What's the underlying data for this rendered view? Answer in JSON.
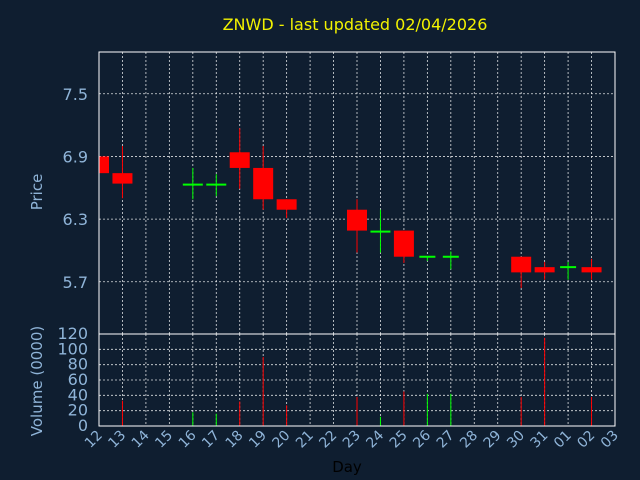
{
  "chart_data": {
    "type": "candlestick",
    "title": "ZNWD - last updated 02/04/2026",
    "xlabel": "Day",
    "ylabel": "Price",
    "volume_label": "Volume (0000)",
    "price_ylim": [
      5.2,
      7.9
    ],
    "price_ticks": [
      "5.7",
      "6.3",
      "6.9",
      "7.5"
    ],
    "volume_ylim": [
      0,
      120
    ],
    "volume_ticks": [
      "0",
      "20",
      "40",
      "60",
      "80",
      "100",
      "120"
    ],
    "x_ticks": [
      "12",
      "13",
      "14",
      "15",
      "16",
      "17",
      "18",
      "19",
      "20",
      "21",
      "22",
      "23",
      "24",
      "25",
      "26",
      "27",
      "28",
      "29",
      "30",
      "31",
      "01",
      "02",
      "03"
    ],
    "grid": true,
    "colors": {
      "down": "#ff0000",
      "up": "#00ff00",
      "background": "#0f1e30",
      "title": "#f2f200",
      "axis_text": "#8fb4d8"
    },
    "candles": [
      {
        "day": "12",
        "open": 6.9,
        "high": 6.92,
        "low": 6.74,
        "close": 6.74,
        "volume": 0
      },
      {
        "day": "13",
        "open": 6.74,
        "high": 7.0,
        "low": 6.5,
        "close": 6.64,
        "volume": 33
      },
      {
        "day": "16",
        "open": 6.63,
        "high": 6.79,
        "low": 6.49,
        "close": 6.64,
        "volume": 18
      },
      {
        "day": "17",
        "open": 6.63,
        "high": 6.73,
        "low": 6.52,
        "close": 6.64,
        "volume": 16
      },
      {
        "day": "18",
        "open": 6.94,
        "high": 7.17,
        "low": 6.59,
        "close": 6.79,
        "volume": 32
      },
      {
        "day": "19",
        "open": 6.79,
        "high": 7.0,
        "low": 6.39,
        "close": 6.49,
        "volume": 90
      },
      {
        "day": "20",
        "open": 6.49,
        "high": 6.49,
        "low": 6.31,
        "close": 6.39,
        "volume": 27
      },
      {
        "day": "23",
        "open": 6.39,
        "high": 6.49,
        "low": 5.98,
        "close": 6.19,
        "volume": 38
      },
      {
        "day": "24",
        "open": 6.18,
        "high": 6.39,
        "low": 5.98,
        "close": 6.19,
        "volume": 12
      },
      {
        "day": "25",
        "open": 6.19,
        "high": 6.19,
        "low": 5.88,
        "close": 5.94,
        "volume": 45
      },
      {
        "day": "26",
        "open": 5.94,
        "high": 5.94,
        "low": 5.9,
        "close": 5.94,
        "volume": 42
      },
      {
        "day": "27",
        "open": 5.94,
        "high": 5.99,
        "low": 5.82,
        "close": 5.94,
        "volume": 42
      },
      {
        "day": "30",
        "open": 5.94,
        "high": 5.94,
        "low": 5.64,
        "close": 5.79,
        "volume": 38
      },
      {
        "day": "31",
        "open": 5.84,
        "high": 5.89,
        "low": 5.72,
        "close": 5.79,
        "volume": 115
      },
      {
        "day": "01",
        "open": 5.84,
        "high": 5.89,
        "low": 5.72,
        "close": 5.84,
        "volume": 0
      },
      {
        "day": "02",
        "open": 5.84,
        "high": 5.92,
        "low": 5.72,
        "close": 5.79,
        "volume": 38
      }
    ]
  }
}
